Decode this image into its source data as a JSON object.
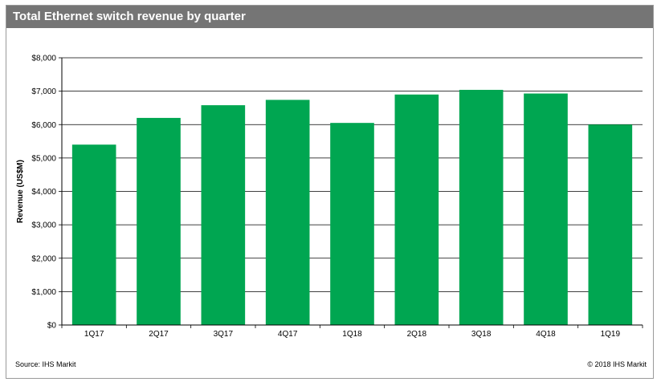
{
  "title": "Total Ethernet switch revenue by quarter",
  "source": "Source:  IHS Markit",
  "copyright": "© 2018  IHS Markit",
  "colors": {
    "bar": "#00A651",
    "title_bg": "#757575",
    "grid": "#000000"
  },
  "chart_data": {
    "type": "bar",
    "title": "Total Ethernet switch revenue by quarter",
    "xlabel": "",
    "ylabel": "Revenue (US$M)",
    "ylim": [
      0,
      8000
    ],
    "yticks": [
      0,
      1000,
      2000,
      3000,
      4000,
      5000,
      6000,
      7000,
      8000
    ],
    "ytick_labels": [
      "$0",
      "$1,000",
      "$2,000",
      "$3,000",
      "$4,000",
      "$5,000",
      "$6,000",
      "$7,000",
      "$8,000"
    ],
    "grid": true,
    "categories": [
      "1Q17",
      "2Q17",
      "3Q17",
      "4Q17",
      "1Q18",
      "2Q18",
      "3Q18",
      "4Q18",
      "1Q19"
    ],
    "values": [
      5400,
      6200,
      6580,
      6740,
      6050,
      6900,
      7040,
      6930,
      6000
    ]
  }
}
